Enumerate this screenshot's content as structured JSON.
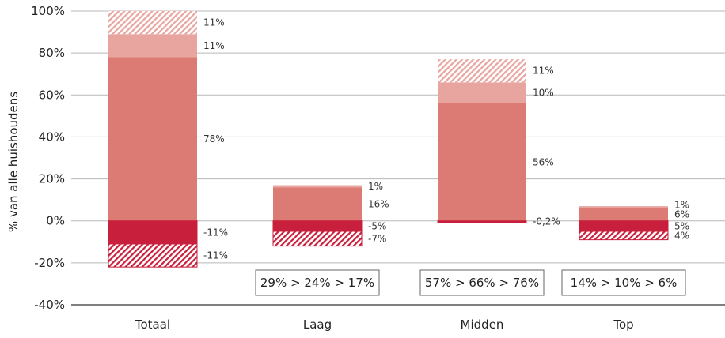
{
  "chart_data": {
    "type": "bar",
    "stacked": true,
    "ylabel": "% van alle huishoudens",
    "ylim": [
      -40,
      100
    ],
    "yticks": [
      100,
      80,
      60,
      40,
      20,
      0,
      -20,
      -40
    ],
    "ytick_labels": [
      "100%",
      "80%",
      "60%",
      "40%",
      "20%",
      "0%",
      "-20%",
      "-40%"
    ],
    "grid": true,
    "colors": {
      "medium": "#db7b74",
      "light": "#e8a59f",
      "hatched_light": "#e8a59f",
      "dark": "#c8203c",
      "hatched_dark": "#c8203c"
    },
    "groups": [
      {
        "category": "Totaal",
        "segments": [
          {
            "style": "medium",
            "value": 78,
            "label": "78%"
          },
          {
            "style": "light",
            "value": 11,
            "label": "11%"
          },
          {
            "style": "hatched_light",
            "value": 11,
            "label": "11%"
          },
          {
            "style": "dark",
            "value": -11,
            "label": "-11%"
          },
          {
            "style": "hatched_dark",
            "value": -11,
            "label": "-11%"
          }
        ],
        "box": ""
      },
      {
        "category": "Laag",
        "segments": [
          {
            "style": "medium",
            "value": 16,
            "label": "16%"
          },
          {
            "style": "light",
            "value": 1,
            "label": "1%"
          },
          {
            "style": "dark",
            "value": -5,
            "label": "-5%"
          },
          {
            "style": "hatched_dark",
            "value": -7,
            "label": "-7%"
          }
        ],
        "box": "29% > 24% > 17%"
      },
      {
        "category": "Midden",
        "segments": [
          {
            "style": "medium",
            "value": 56,
            "label": "56%"
          },
          {
            "style": "light",
            "value": 10,
            "label": "10%"
          },
          {
            "style": "hatched_light",
            "value": 11,
            "label": "11%"
          },
          {
            "style": "dark",
            "value": -0.2,
            "label": "-0,2%"
          }
        ],
        "box": "57% > 66% > 76%"
      },
      {
        "category": "Top",
        "segments": [
          {
            "style": "medium",
            "value": 6,
            "label": "6%"
          },
          {
            "style": "light",
            "value": 1,
            "label": "1%"
          },
          {
            "style": "dark",
            "value": -5,
            "label": "5%"
          },
          {
            "style": "hatched_dark",
            "value": -4,
            "label": "4%"
          }
        ],
        "box": "14% > 10% > 6%"
      }
    ]
  }
}
